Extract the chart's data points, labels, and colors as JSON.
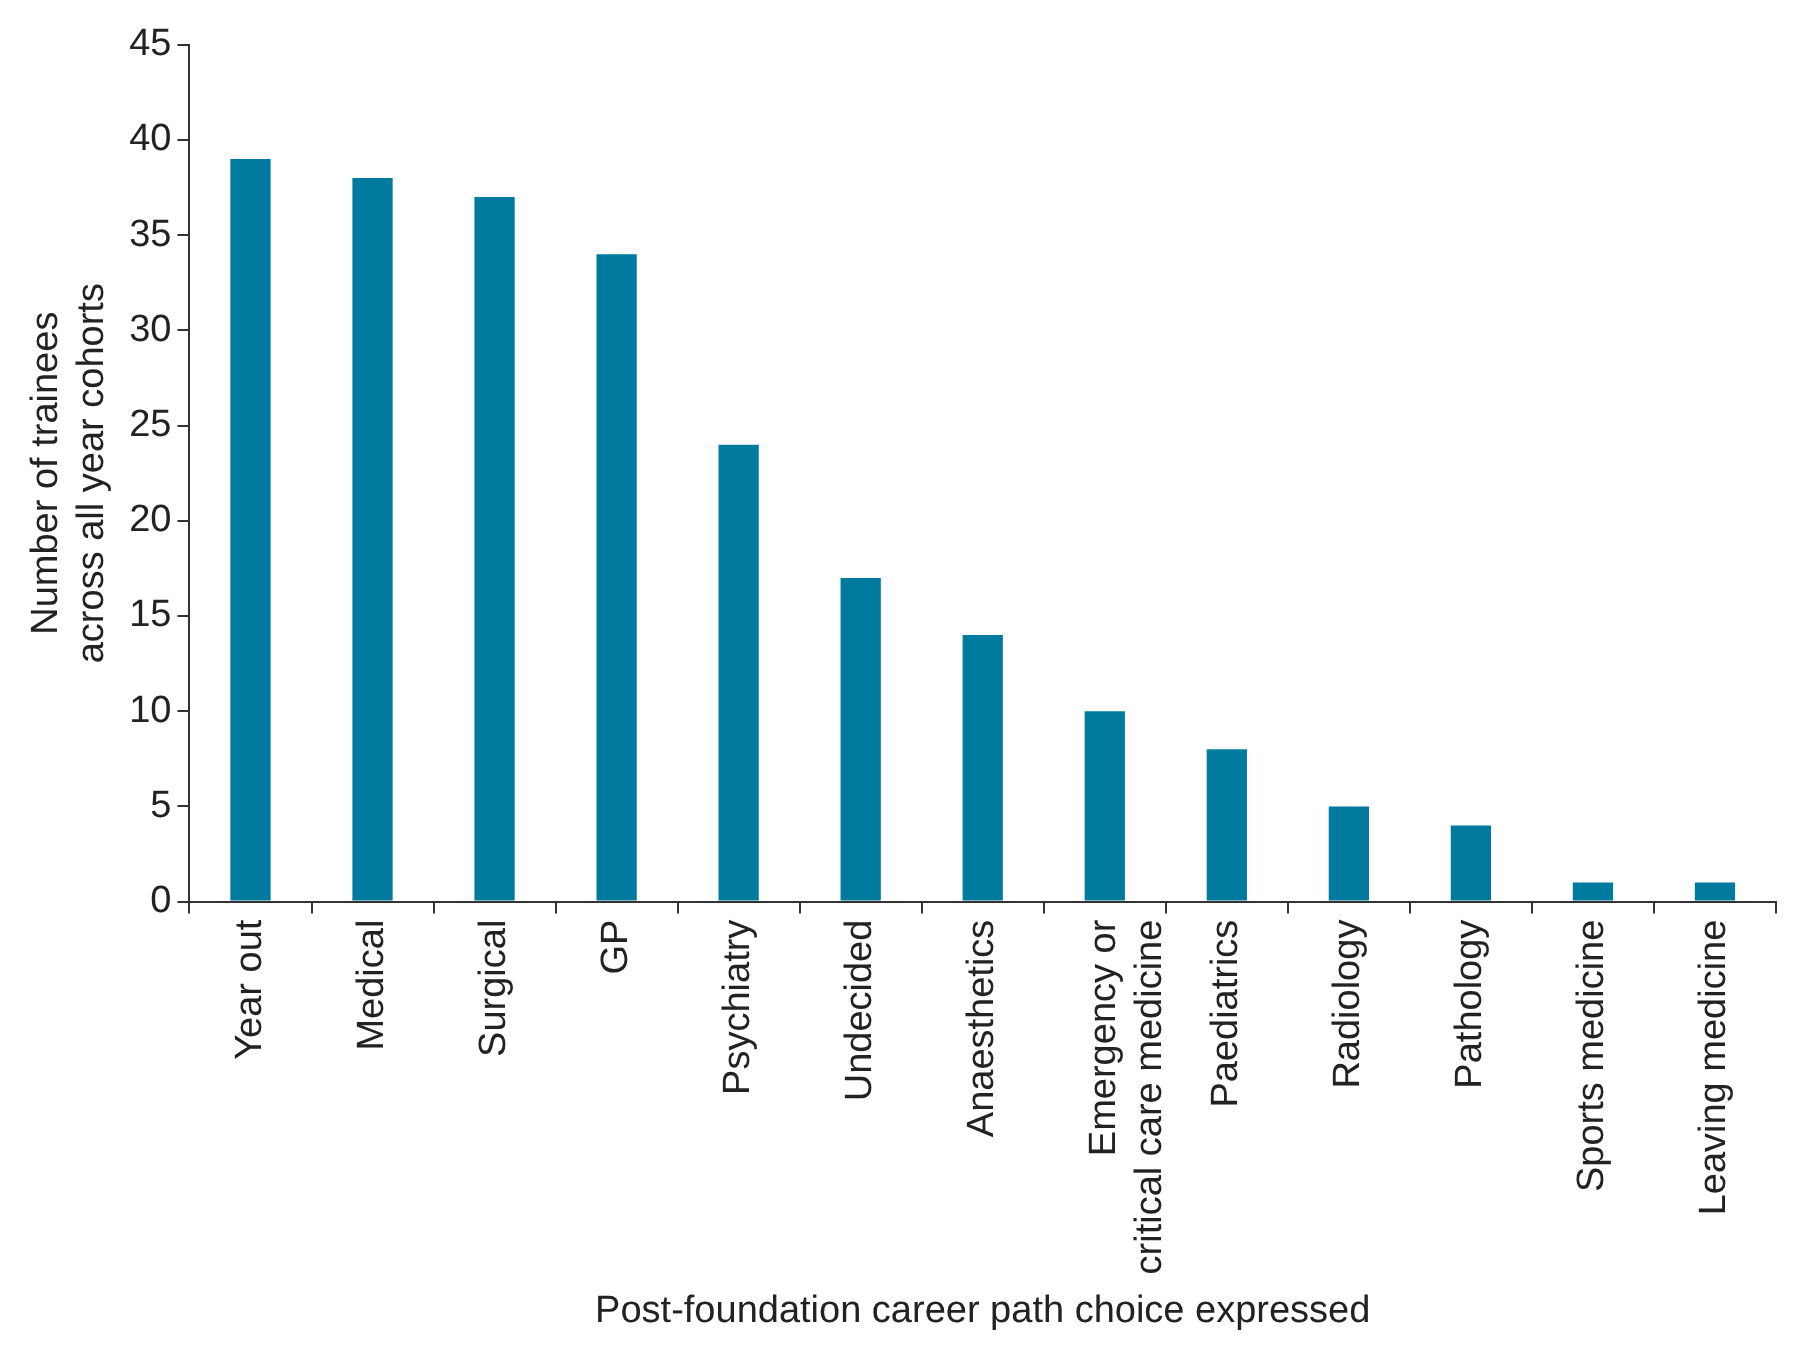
{
  "chart_data": {
    "type": "bar",
    "xlabel": "Post-foundation career path choice expressed",
    "ylabel": "Number of trainees\nacross all year cohorts",
    "categories": [
      "Year out",
      "Medical",
      "Surgical",
      "GP",
      "Psychiatry",
      "Undecided",
      "Anaesthetics",
      "Emergency or\ncritical care medicine",
      "Paediatrics",
      "Radiology",
      "Pathology",
      "Sports medicine",
      "Leaving medicine"
    ],
    "values": [
      39,
      38,
      37,
      34,
      24,
      17,
      14,
      10,
      8,
      5,
      4,
      1,
      1
    ],
    "color": "#007b9f",
    "ylim": [
      0,
      45
    ],
    "yticks": [
      0,
      5,
      10,
      15,
      20,
      25,
      30,
      35,
      40,
      45
    ],
    "grid": false,
    "legend": false
  }
}
